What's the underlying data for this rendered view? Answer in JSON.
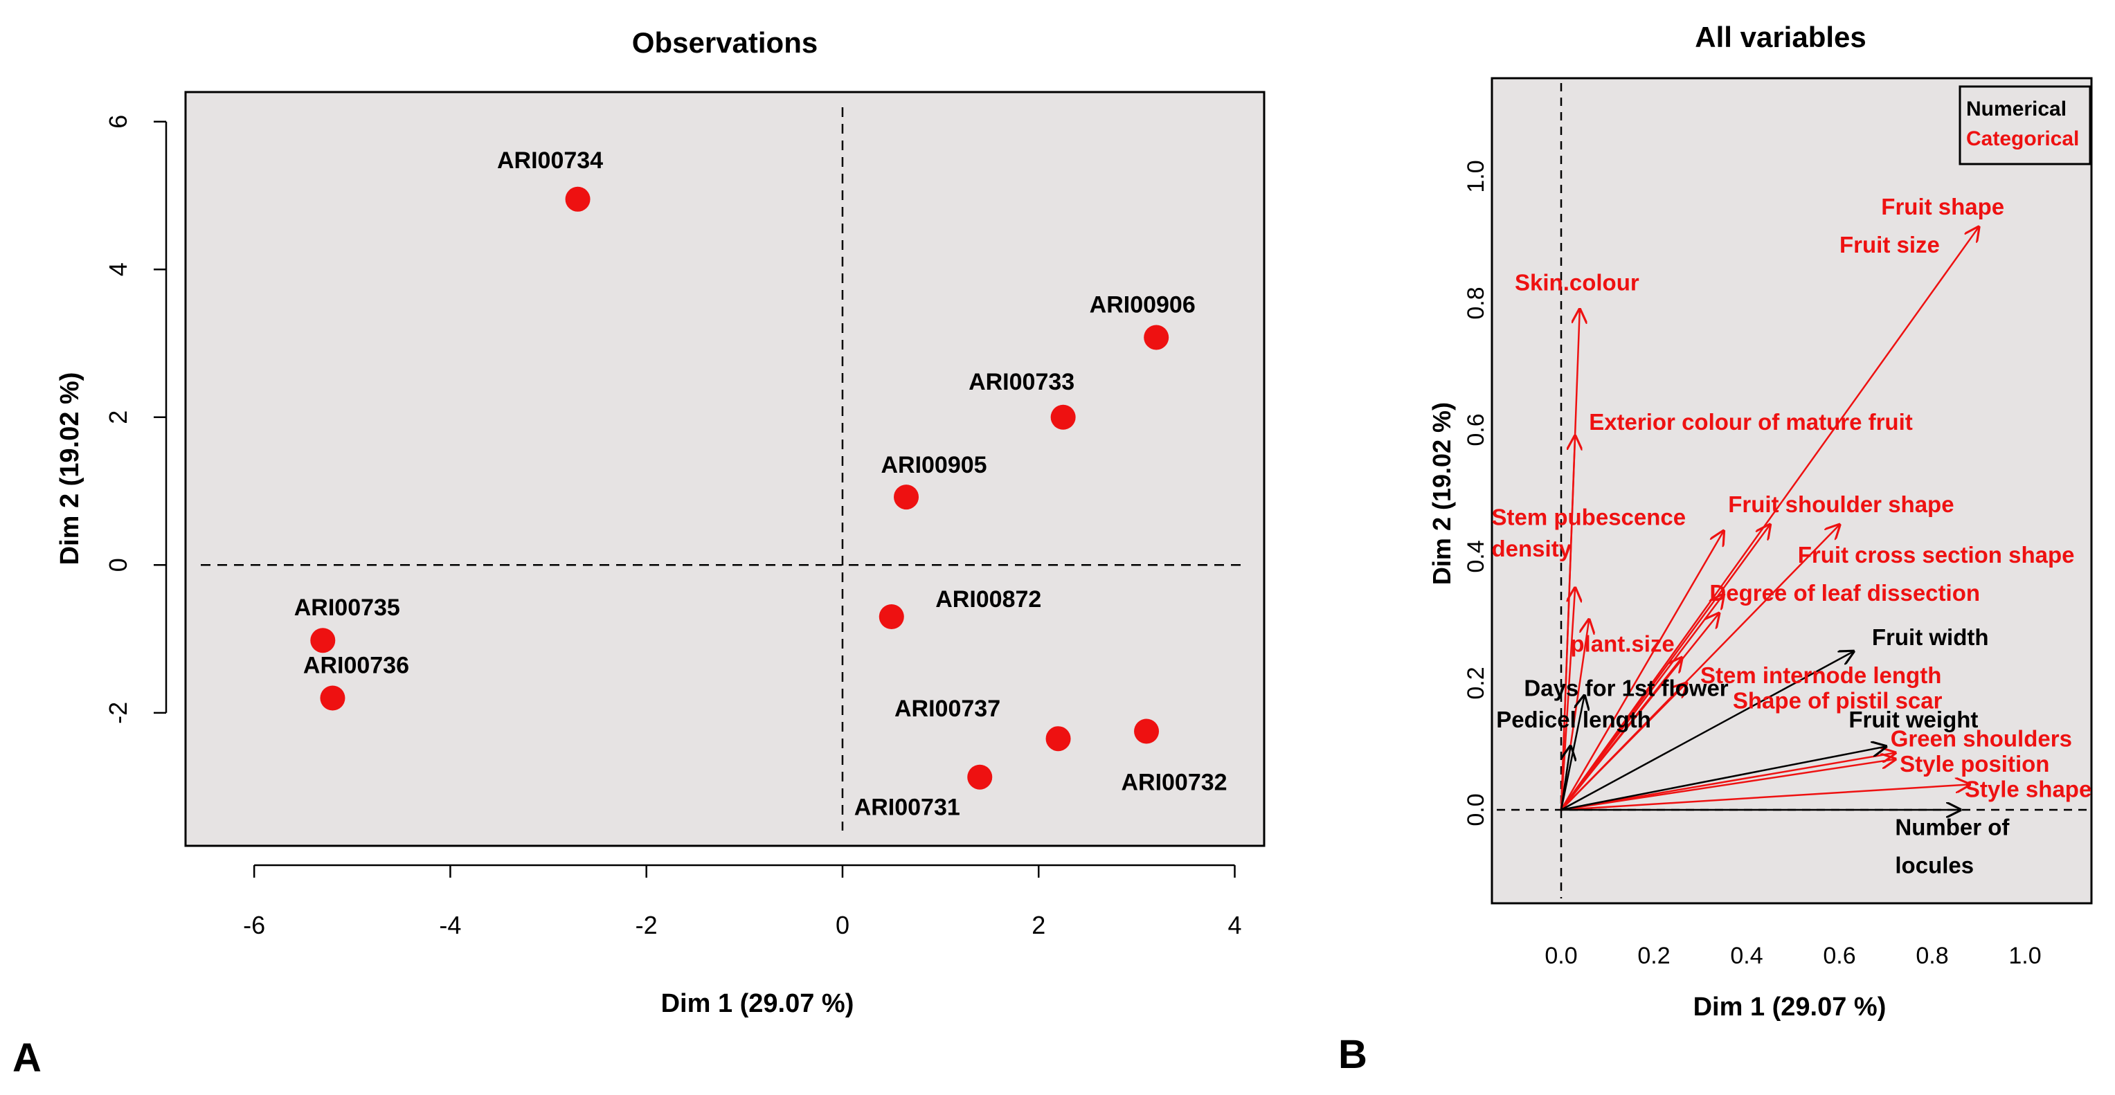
{
  "chart_data": [
    {
      "type": "scatter",
      "panel_letter": "A",
      "title": "Observations",
      "xlabel": "Dim 1 (29.07 %)",
      "ylabel": "Dim 2 (19.02 %)",
      "xlim": [
        -6.7,
        4.3
      ],
      "ylim": [
        -3.8,
        6.4
      ],
      "xticks": [
        -6,
        -4,
        -2,
        0,
        2,
        4
      ],
      "yticks": [
        -2,
        0,
        2,
        4,
        6
      ],
      "reference_lines": {
        "x": 0,
        "y": 0,
        "style": "dashed"
      },
      "grid": false,
      "background_color": "#e6e3e3",
      "point_color": "#ee1111",
      "points": [
        {
          "label": "ARI00734",
          "x": -2.7,
          "y": 4.95
        },
        {
          "label": "ARI00906",
          "x": 3.2,
          "y": 3.08
        },
        {
          "label": "ARI00733",
          "x": 2.25,
          "y": 2.0
        },
        {
          "label": "ARI00905",
          "x": 0.65,
          "y": 0.92
        },
        {
          "label": "ARI00872",
          "x": 0.5,
          "y": -0.7
        },
        {
          "label": "ARI00735",
          "x": -5.3,
          "y": -1.02
        },
        {
          "label": "ARI00736",
          "x": -5.2,
          "y": -1.8
        },
        {
          "label": "ARI00737",
          "x": 2.2,
          "y": -2.35
        },
        {
          "label": "ARI00732",
          "x": 3.1,
          "y": -2.25
        },
        {
          "label": "ARI00731",
          "x": 1.4,
          "y": -2.87
        }
      ]
    },
    {
      "type": "scatter",
      "subtype": "variable-loadings-arrows",
      "panel_letter": "B",
      "title": "All variables",
      "xlabel": "Dim 1 (29.07 %)",
      "ylabel": "Dim 2 (19.02 %)",
      "xlim": [
        -0.15,
        1.2
      ],
      "ylim": [
        -0.15,
        1.16
      ],
      "xticks": [
        0.0,
        0.2,
        0.4,
        0.6,
        0.8,
        1.0
      ],
      "yticks": [
        0.0,
        0.2,
        0.4,
        0.6,
        0.8,
        1.0
      ],
      "reference_lines": {
        "x": 0,
        "y": 0,
        "style": "dashed"
      },
      "grid": false,
      "background_color": "#e6e3e3",
      "legend": {
        "position": "top-right",
        "entries": [
          {
            "label": "Numerical",
            "color": "#000000"
          },
          {
            "label": "Categorical",
            "color": "#ee1111"
          }
        ]
      },
      "arrows": [
        {
          "x": 0.9,
          "y": 0.92,
          "group": "categorical"
        },
        {
          "x": 0.04,
          "y": 0.79,
          "group": "categorical"
        },
        {
          "x": 0.03,
          "y": 0.59,
          "group": "categorical"
        },
        {
          "x": 0.35,
          "y": 0.44,
          "group": "categorical"
        },
        {
          "x": 0.45,
          "y": 0.45,
          "group": "categorical"
        },
        {
          "x": 0.6,
          "y": 0.45,
          "group": "categorical"
        },
        {
          "x": 0.35,
          "y": 0.34,
          "group": "categorical"
        },
        {
          "x": 0.34,
          "y": 0.31,
          "group": "categorical"
        },
        {
          "x": 0.26,
          "y": 0.24,
          "group": "categorical"
        },
        {
          "x": 0.27,
          "y": 0.2,
          "group": "categorical"
        },
        {
          "x": 0.72,
          "y": 0.09,
          "group": "categorical"
        },
        {
          "x": 0.72,
          "y": 0.08,
          "group": "categorical"
        },
        {
          "x": 0.88,
          "y": 0.04,
          "group": "categorical"
        },
        {
          "x": 0.06,
          "y": 0.3,
          "group": "categorical"
        },
        {
          "x": 0.03,
          "y": 0.35,
          "group": "categorical"
        },
        {
          "x": 0.63,
          "y": 0.25,
          "group": "numerical"
        },
        {
          "x": 0.7,
          "y": 0.1,
          "group": "numerical"
        },
        {
          "x": 0.86,
          "y": 0.0,
          "group": "numerical"
        },
        {
          "x": 0.05,
          "y": 0.18,
          "group": "numerical"
        },
        {
          "x": 0.02,
          "y": 0.1,
          "group": "numerical"
        }
      ],
      "labels": [
        {
          "text": "Fruit shape",
          "x": 0.69,
          "y": 0.94,
          "group": "categorical"
        },
        {
          "text": "Fruit size",
          "x": 0.6,
          "y": 0.88,
          "group": "categorical"
        },
        {
          "text": "Skin.colour",
          "x": -0.1,
          "y": 0.82,
          "group": "categorical"
        },
        {
          "text": "Exterior colour of mature fruit",
          "x": 0.06,
          "y": 0.6,
          "group": "categorical"
        },
        {
          "text": "Fruit shoulder shape",
          "x": 0.36,
          "y": 0.47,
          "group": "categorical"
        },
        {
          "text": "Stem pubescence",
          "x": -0.15,
          "y": 0.45,
          "group": "categorical"
        },
        {
          "text": "density",
          "x": -0.15,
          "y": 0.4,
          "group": "categorical"
        },
        {
          "text": "Fruit cross section shape",
          "x": 0.51,
          "y": 0.39,
          "group": "categorical"
        },
        {
          "text": "Degree of leaf dissection",
          "x": 0.32,
          "y": 0.33,
          "group": "categorical"
        },
        {
          "text": "plant.size",
          "x": 0.02,
          "y": 0.25,
          "group": "categorical"
        },
        {
          "text": "Stem internode length",
          "x": 0.3,
          "y": 0.2,
          "group": "categorical"
        },
        {
          "text": "Shape of pistil scar",
          "x": 0.37,
          "y": 0.16,
          "group": "categorical"
        },
        {
          "text": "Green shoulders",
          "x": 0.71,
          "y": 0.1,
          "group": "categorical"
        },
        {
          "text": "Style position",
          "x": 0.73,
          "y": 0.06,
          "group": "categorical"
        },
        {
          "text": "Style shape",
          "x": 0.87,
          "y": 0.02,
          "group": "categorical"
        },
        {
          "text": "Fruit width",
          "x": 0.67,
          "y": 0.26,
          "group": "numerical"
        },
        {
          "text": "Days for 1st flower",
          "x": -0.08,
          "y": 0.18,
          "group": "numerical"
        },
        {
          "text": "Pedicel length",
          "x": -0.14,
          "y": 0.13,
          "group": "numerical"
        },
        {
          "text": "Fruit weight",
          "x": 0.62,
          "y": 0.13,
          "group": "numerical"
        },
        {
          "text": "Number of",
          "x": 0.72,
          "y": -0.04,
          "group": "numerical"
        },
        {
          "text": "locules",
          "x": 0.72,
          "y": -0.1,
          "group": "numerical"
        }
      ]
    }
  ]
}
